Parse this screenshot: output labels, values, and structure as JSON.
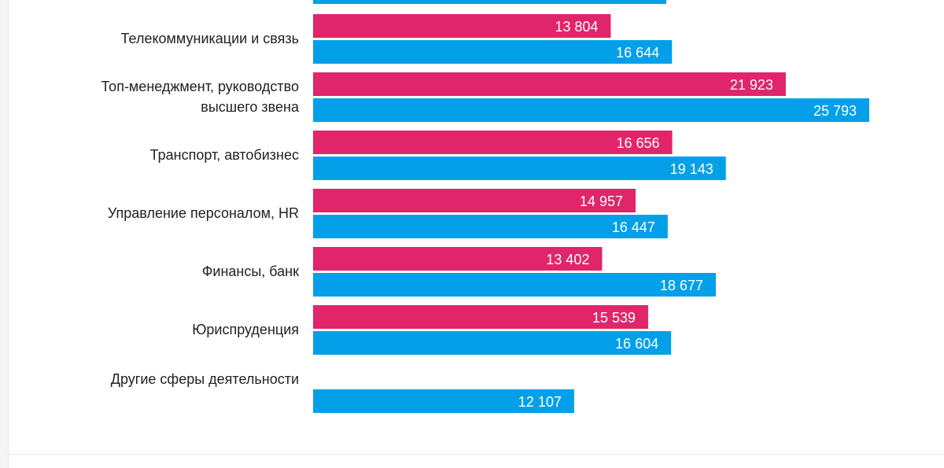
{
  "chart_data": {
    "type": "bar",
    "orientation": "horizontal",
    "title": "",
    "xlabel": "",
    "ylabel": "",
    "colors": {
      "series_a": "#e0256a",
      "series_b": "#03a0e9"
    },
    "partial_top_bar": {
      "series": "series_b",
      "value": 16380
    },
    "categories": [
      {
        "label": [
          "Телекоммуникации и связь"
        ],
        "a": 13804,
        "a_label": "13 804",
        "b": 16644,
        "b_label": "16 644"
      },
      {
        "label": [
          "Топ-менеджмент, руководство",
          "высшего звена"
        ],
        "a": 21923,
        "a_label": "21 923",
        "b": 25793,
        "b_label": "25 793"
      },
      {
        "label": [
          "Транспорт, автобизнес"
        ],
        "a": 16656,
        "a_label": "16 656",
        "b": 19143,
        "b_label": "19 143"
      },
      {
        "label": [
          "Управление персоналом, HR"
        ],
        "a": 14957,
        "a_label": "14 957",
        "b": 16447,
        "b_label": "16 447"
      },
      {
        "label": [
          "Финансы, банк"
        ],
        "a": 13402,
        "a_label": "13 402",
        "b": 18677,
        "b_label": "18 677"
      },
      {
        "label": [
          "Юриспруденция"
        ],
        "a": 15539,
        "a_label": "15 539",
        "b": 16604,
        "b_label": "16 604"
      },
      {
        "label": [
          "Другие сферы деятельности"
        ],
        "a": null,
        "a_label": null,
        "b": 12107,
        "b_label": "12 107"
      }
    ]
  }
}
